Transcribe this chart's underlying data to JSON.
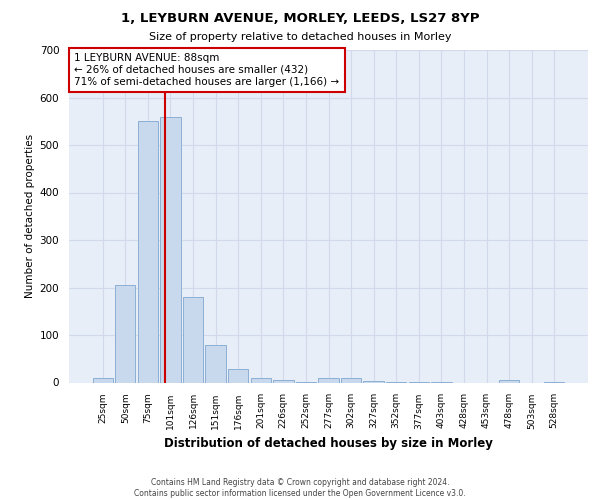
{
  "title1": "1, LEYBURN AVENUE, MORLEY, LEEDS, LS27 8YP",
  "title2": "Size of property relative to detached houses in Morley",
  "xlabel": "Distribution of detached houses by size in Morley",
  "ylabel": "Number of detached properties",
  "bar_color": "#c8d9ed",
  "bar_edge_color": "#8cafd4",
  "grid_color": "#d0daea",
  "bg_color": "#e8eef8",
  "categories": [
    "25sqm",
    "50sqm",
    "75sqm",
    "101sqm",
    "126sqm",
    "151sqm",
    "176sqm",
    "201sqm",
    "226sqm",
    "252sqm",
    "277sqm",
    "302sqm",
    "327sqm",
    "352sqm",
    "377sqm",
    "403sqm",
    "428sqm",
    "453sqm",
    "478sqm",
    "503sqm",
    "528sqm"
  ],
  "values": [
    10,
    205,
    550,
    560,
    180,
    78,
    28,
    10,
    6,
    2,
    10,
    10,
    3,
    2,
    2,
    2,
    0,
    0,
    5,
    0,
    2
  ],
  "vline_x": 2.75,
  "vline_color": "#cc0000",
  "annotation_text": "1 LEYBURN AVENUE: 88sqm\n← 26% of detached houses are smaller (432)\n71% of semi-detached houses are larger (1,166) →",
  "annotation_box_color": "#ffffff",
  "annotation_border_color": "#cc0000",
  "ylim": [
    0,
    700
  ],
  "yticks": [
    0,
    100,
    200,
    300,
    400,
    500,
    600,
    700
  ],
  "footer1": "Contains HM Land Registry data © Crown copyright and database right 2024.",
  "footer2": "Contains public sector information licensed under the Open Government Licence v3.0."
}
